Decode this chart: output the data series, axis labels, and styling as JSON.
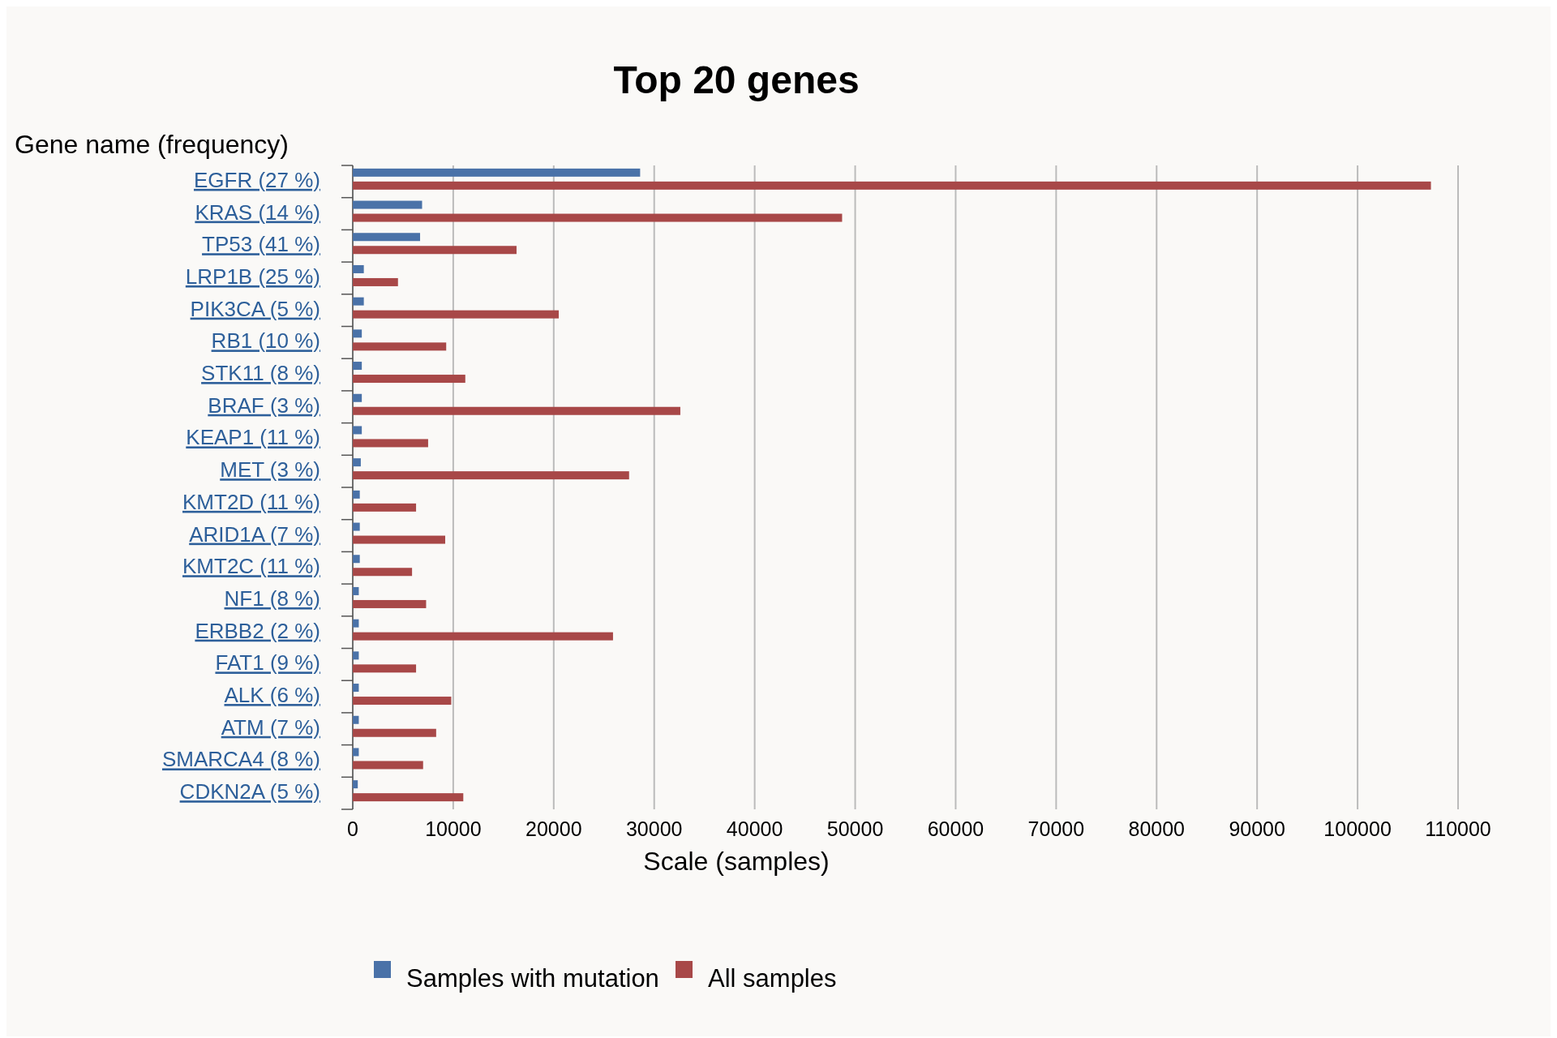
{
  "chart_data": {
    "type": "bar",
    "orientation": "horizontal",
    "title": "Top 20 genes",
    "ylabel": "Gene name (frequency)",
    "xlabel": "Scale (samples)",
    "categories": [
      "EGFR (27 %)",
      "KRAS (14 %)",
      "TP53 (41 %)",
      "LRP1B (25 %)",
      "PIK3CA (5 %)",
      "RB1 (10 %)",
      "STK11 (8 %)",
      "BRAF (3 %)",
      "KEAP1 (11 %)",
      "MET (3 %)",
      "KMT2D (11 %)",
      "ARID1A (7 %)",
      "KMT2C (11 %)",
      "NF1 (8 %)",
      "ERBB2 (2 %)",
      "FAT1 (9 %)",
      "ALK (6 %)",
      "ATM (7 %)",
      "SMARCA4 (8 %)",
      "CDKN2A (5 %)"
    ],
    "series": [
      {
        "name": "Samples with mutation",
        "color": "#4a72a8",
        "values": [
          28600,
          6900,
          6700,
          1100,
          1100,
          900,
          900,
          900,
          900,
          800,
          700,
          700,
          700,
          600,
          600,
          600,
          600,
          600,
          600,
          500
        ]
      },
      {
        "name": "All samples",
        "color": "#a84848",
        "values": [
          107300,
          48700,
          16300,
          4500,
          20500,
          9300,
          11200,
          32600,
          7500,
          27500,
          6300,
          9200,
          5900,
          7300,
          25900,
          6300,
          9800,
          8300,
          7000,
          11000
        ]
      }
    ],
    "xlim": [
      0,
      110000
    ],
    "xticks": [
      0,
      10000,
      20000,
      30000,
      40000,
      50000,
      60000,
      70000,
      80000,
      90000,
      100000,
      110000
    ],
    "grid": "x",
    "legend": "bottom"
  }
}
